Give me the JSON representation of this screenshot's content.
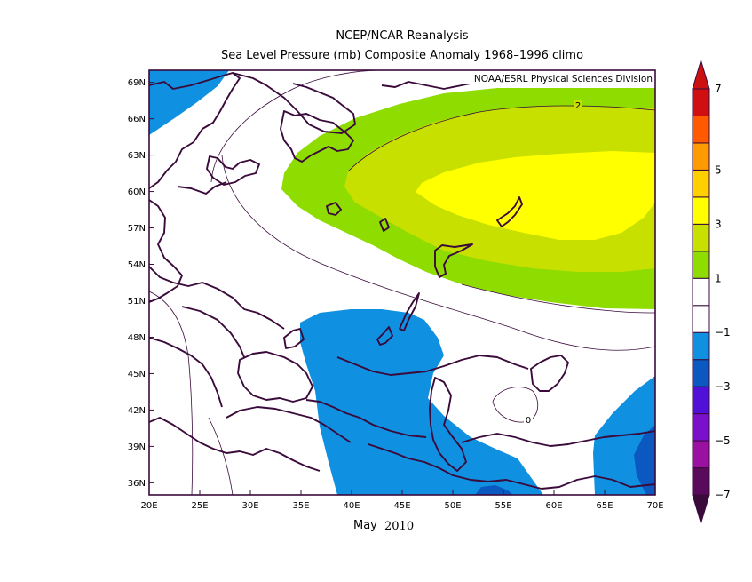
{
  "header": {
    "title": "NCEP/NCAR Reanalysis",
    "subtitle": "Sea Level Pressure (mb) Composite Anomaly 1968–1996 climo"
  },
  "credit": "NOAA/ESRL Physical Sciences Division",
  "date": {
    "month": "May",
    "year": "2010"
  },
  "map": {
    "lon_range": [
      20,
      70
    ],
    "lat_range": [
      35,
      70
    ],
    "x_ticks": [
      "20E",
      "25E",
      "30E",
      "35E",
      "40E",
      "45E",
      "50E",
      "55E",
      "60E",
      "65E",
      "70E"
    ],
    "y_ticks": [
      "36N",
      "39N",
      "42N",
      "45N",
      "48N",
      "51N",
      "54N",
      "57N",
      "60N",
      "63N",
      "66N",
      "69N"
    ],
    "contour_labels": [
      "2",
      "0"
    ]
  },
  "colorbar": {
    "levels": [
      "−7",
      "−5",
      "−3",
      "−1",
      "1",
      "3",
      "5",
      "7"
    ],
    "colors": [
      "#5a0a5a",
      "#9a10a0",
      "#7a10cc",
      "#5010d8",
      "#0a58c0",
      "#1090e0",
      "#ffffff",
      "#ffffff",
      "#8edc00",
      "#c8e000",
      "#ffff00",
      "#ffd000",
      "#ff9a00",
      "#ff5a00",
      "#d01010"
    ]
  },
  "fill_colors": {
    "anomaly_plus_1_to_2": "#8edc00",
    "anomaly_plus_2_to_3": "#c8e000",
    "anomaly_plus_3_to_4": "#ffff00",
    "anomaly_minus_1_to_2": "#1090e0",
    "anomaly_minus_2_to_3": "#0a58c0",
    "coastline": "#3a0a3a"
  }
}
